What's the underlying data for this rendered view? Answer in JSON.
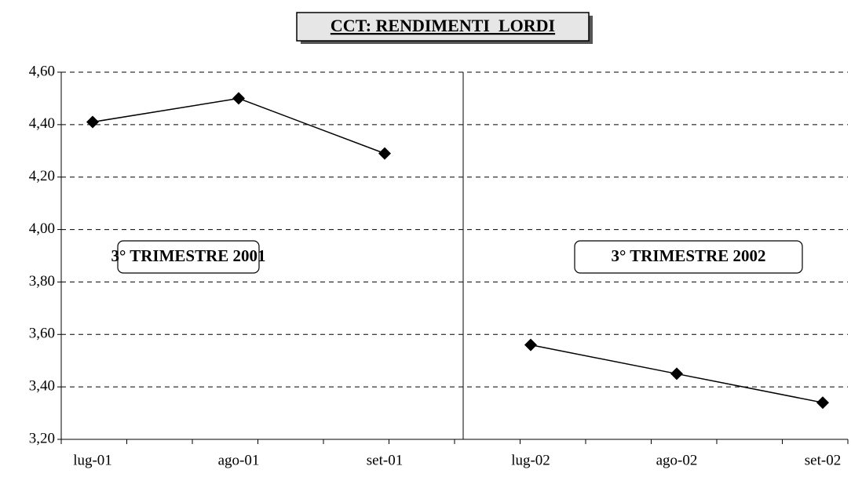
{
  "chart_data": {
    "type": "line",
    "title": "CCT: RENDIMENTI  LORDI",
    "categories": [
      "lug-01",
      "ago-01",
      "set-01",
      "lug-02",
      "ago-02",
      "set-02"
    ],
    "series": [
      {
        "color": "#000000",
        "values": [
          4.41,
          4.5,
          4.29,
          null,
          null,
          null
        ]
      },
      {
        "color": "#000000",
        "values": [
          null,
          null,
          null,
          3.56,
          3.45,
          3.34
        ]
      }
    ],
    "annotations": [
      "3° TRIMESTRE 2001",
      "3° TRIMESTRE 2002"
    ],
    "ylim": [
      3.2,
      4.6
    ],
    "yticks": [
      {
        "value": 3.2,
        "label": "3,20"
      },
      {
        "value": 3.4,
        "label": "3,40"
      },
      {
        "value": 3.6,
        "label": "3,60"
      },
      {
        "value": 3.8,
        "label": "3,80"
      },
      {
        "value": 4.0,
        "label": "4,00"
      },
      {
        "value": 4.2,
        "label": "4,20"
      },
      {
        "value": 4.4,
        "label": "4,40"
      },
      {
        "value": 4.6,
        "label": "4,60"
      }
    ],
    "grid": true
  }
}
